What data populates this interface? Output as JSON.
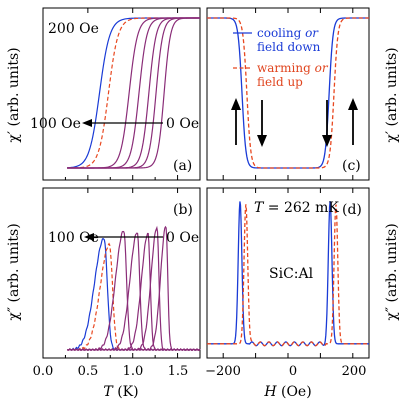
{
  "colors": {
    "blue": "#1a3bd6",
    "red": "#e8471f",
    "purple": "#8a2d78",
    "axis": "#000000"
  },
  "chart_data": [
    {
      "panel": "a",
      "panel_label": "(a)",
      "type": "line",
      "ylabel": "χ′ (arb. units)",
      "xlabel": "",
      "xlim": [
        0.0,
        1.75
      ],
      "ylim": [
        0,
        1
      ],
      "xticks": [
        "0.0",
        "0.5",
        "1.0",
        "1.5"
      ],
      "annotations": [
        "200 Oe",
        "100 Oe",
        "0 Oe"
      ],
      "transitions": [
        {
          "field_oe": 200,
          "center_k": 0.63,
          "series": "cooling"
        },
        {
          "field_oe": 200,
          "center_k": 0.73,
          "series": "warming"
        },
        {
          "field_oe": 175,
          "center_k": 0.96,
          "series": "cooling"
        },
        {
          "field_oe": 150,
          "center_k": 1.07,
          "series": "cooling"
        },
        {
          "field_oe": 125,
          "center_k": 1.18,
          "series": "cooling"
        },
        {
          "field_oe": 100,
          "center_k": 1.26,
          "series": "cooling"
        },
        {
          "field_oe": 0,
          "center_k": 1.35,
          "series": "cooling"
        }
      ]
    },
    {
      "panel": "b",
      "panel_label": "(b)",
      "type": "line",
      "ylabel": "χ″ (arb. units)",
      "xlabel": "T (K)",
      "xlim": [
        0.0,
        1.75
      ],
      "ylim": [
        0,
        1
      ],
      "xticks": [
        "0.0",
        "0.5",
        "1.0",
        "1.5"
      ],
      "annotations": [
        "100 Oe",
        "0 Oe"
      ],
      "peaks": [
        {
          "center_k": 0.68,
          "height": 0.72,
          "series": "cooling"
        },
        {
          "center_k": 0.74,
          "height": 0.68,
          "series": "warming"
        },
        {
          "center_k": 0.9,
          "height": 0.77,
          "series": "cooling"
        },
        {
          "center_k": 1.05,
          "height": 0.76,
          "series": "cooling"
        },
        {
          "center_k": 1.17,
          "height": 0.75,
          "series": "cooling"
        },
        {
          "center_k": 1.27,
          "height": 0.79,
          "series": "cooling"
        },
        {
          "center_k": 1.37,
          "height": 0.8,
          "series": "cooling"
        }
      ]
    },
    {
      "panel": "c",
      "panel_label": "(c)",
      "type": "line",
      "ylabel": "χ′ (arb. units)",
      "xlabel": "",
      "xlim": [
        -250,
        250
      ],
      "ylim": [
        0,
        1
      ],
      "xticks": [
        "−200",
        "−100",
        "0",
        "100",
        "200"
      ],
      "legend": {
        "position": "top-right",
        "entries": [
          "cooling or field down",
          "warming or field up"
        ]
      },
      "series": [
        {
          "name": "cooling or field down",
          "style": "solid",
          "color": "#1a3bd6",
          "left_edge_oe": -142,
          "right_edge_oe": 127
        },
        {
          "name": "warming or field up",
          "style": "dashed",
          "color": "#e8471f",
          "left_edge_oe": -127,
          "right_edge_oe": 142
        }
      ]
    },
    {
      "panel": "d",
      "panel_label": "(d)",
      "type": "line",
      "ylabel": "χ″ (arb. units)",
      "xlabel": "H (Oe)",
      "xlim": [
        -250,
        250
      ],
      "ylim": [
        0,
        1
      ],
      "xticks": [
        "−200",
        "−100",
        "0",
        "100",
        "200"
      ],
      "annotations": [
        "T = 262 mK",
        "SiC:Al"
      ],
      "series": [
        {
          "name": "cooling or field down",
          "style": "solid",
          "color": "#1a3bd6",
          "peaks_oe": [
            -148,
            130
          ],
          "height": 0.92
        },
        {
          "name": "warming or field up",
          "style": "dashed",
          "color": "#e8471f",
          "peaks_oe": [
            -130,
            148
          ],
          "height": 0.9
        }
      ]
    }
  ],
  "labels": {
    "a_200": "200 Oe",
    "a_100": "100 Oe",
    "a_0": "0 Oe",
    "b_100": "100 Oe",
    "b_0": "0 Oe",
    "c_leg1_a": "cooling ",
    "c_leg1_b": "or",
    "c_leg1_c": "field down",
    "c_leg2_a": "warming ",
    "c_leg2_b": "or",
    "c_leg2_c": "field up",
    "d_T": "T",
    "d_T_val": " = 262 mK",
    "d_sample": "SiC:Al",
    "x_a": "T",
    "x_a_unit": " (K)",
    "x_c": "H",
    "x_c_unit": " (Oe)",
    "y_a": "χ′ (arb. units)",
    "y_b": "χ″ (arb. units)",
    "y_c": "χ′ (arb. units)",
    "y_d": "χ″ (arb. units)",
    "pl_a": "(a)",
    "pl_b": "(b)",
    "pl_c": "(c)",
    "pl_d": "(d)",
    "xt": [
      "0.0",
      "0.5",
      "1.0",
      "1.5"
    ],
    "ht": [
      "−200",
      "0",
      "200"
    ]
  }
}
